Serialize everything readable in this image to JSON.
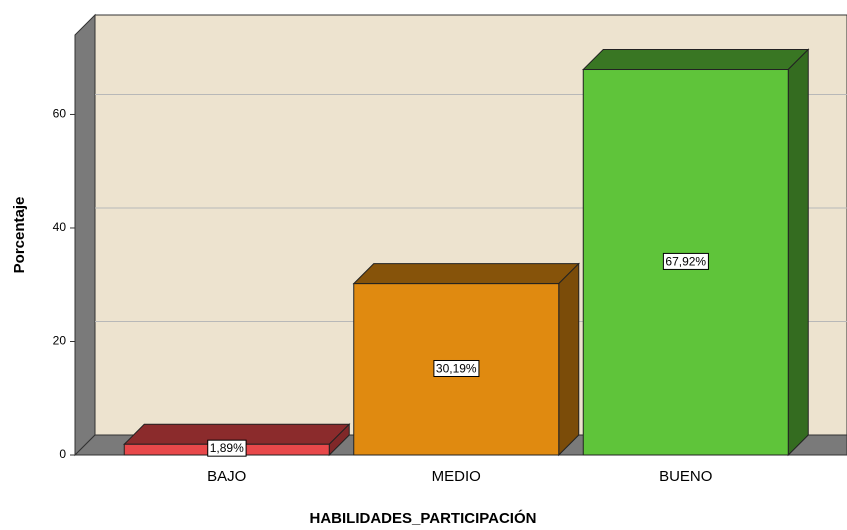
{
  "chart_data": {
    "type": "bar3d",
    "x_label": "HABILIDADES_PARTICIPACIÓN",
    "y_label": "Porcentaje",
    "categories": [
      "BAJO",
      "MEDIO",
      "BUENO"
    ],
    "values": [
      1.89,
      30.19,
      67.92
    ],
    "value_labels": [
      "1,89%",
      "30,19%",
      "67,92%"
    ],
    "colors": [
      "#e8484a",
      "#e08a10",
      "#5fc43a"
    ],
    "ylim": [
      0,
      74
    ],
    "yticks": [
      0,
      20,
      40,
      60
    ],
    "grid": true
  }
}
